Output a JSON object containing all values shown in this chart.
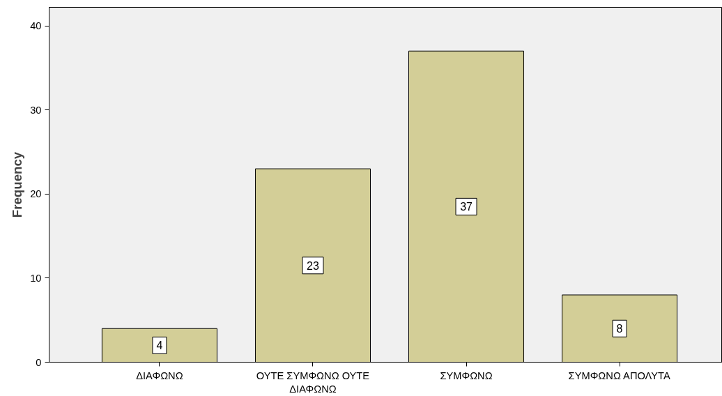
{
  "chart_data": {
    "type": "bar",
    "ylabel": "Frequency",
    "categories": [
      "ΔΙΑΦΩΝΩ",
      "ΟΥΤΕ ΣΥΜΦΩΝΩ ΟΥΤΕ ΔΙΑΦΩΝΩ",
      "ΣΥΜΦΩΝΩ",
      "ΣΥΜΦΩΝΩ ΑΠΟΛΥΤΑ"
    ],
    "values": [
      4,
      23,
      37,
      8
    ],
    "color": "#d3ce97",
    "ylim": [
      0,
      42.2
    ],
    "yticks": [
      0,
      10,
      20,
      30,
      40
    ],
    "grid": false,
    "data_labels": true
  }
}
